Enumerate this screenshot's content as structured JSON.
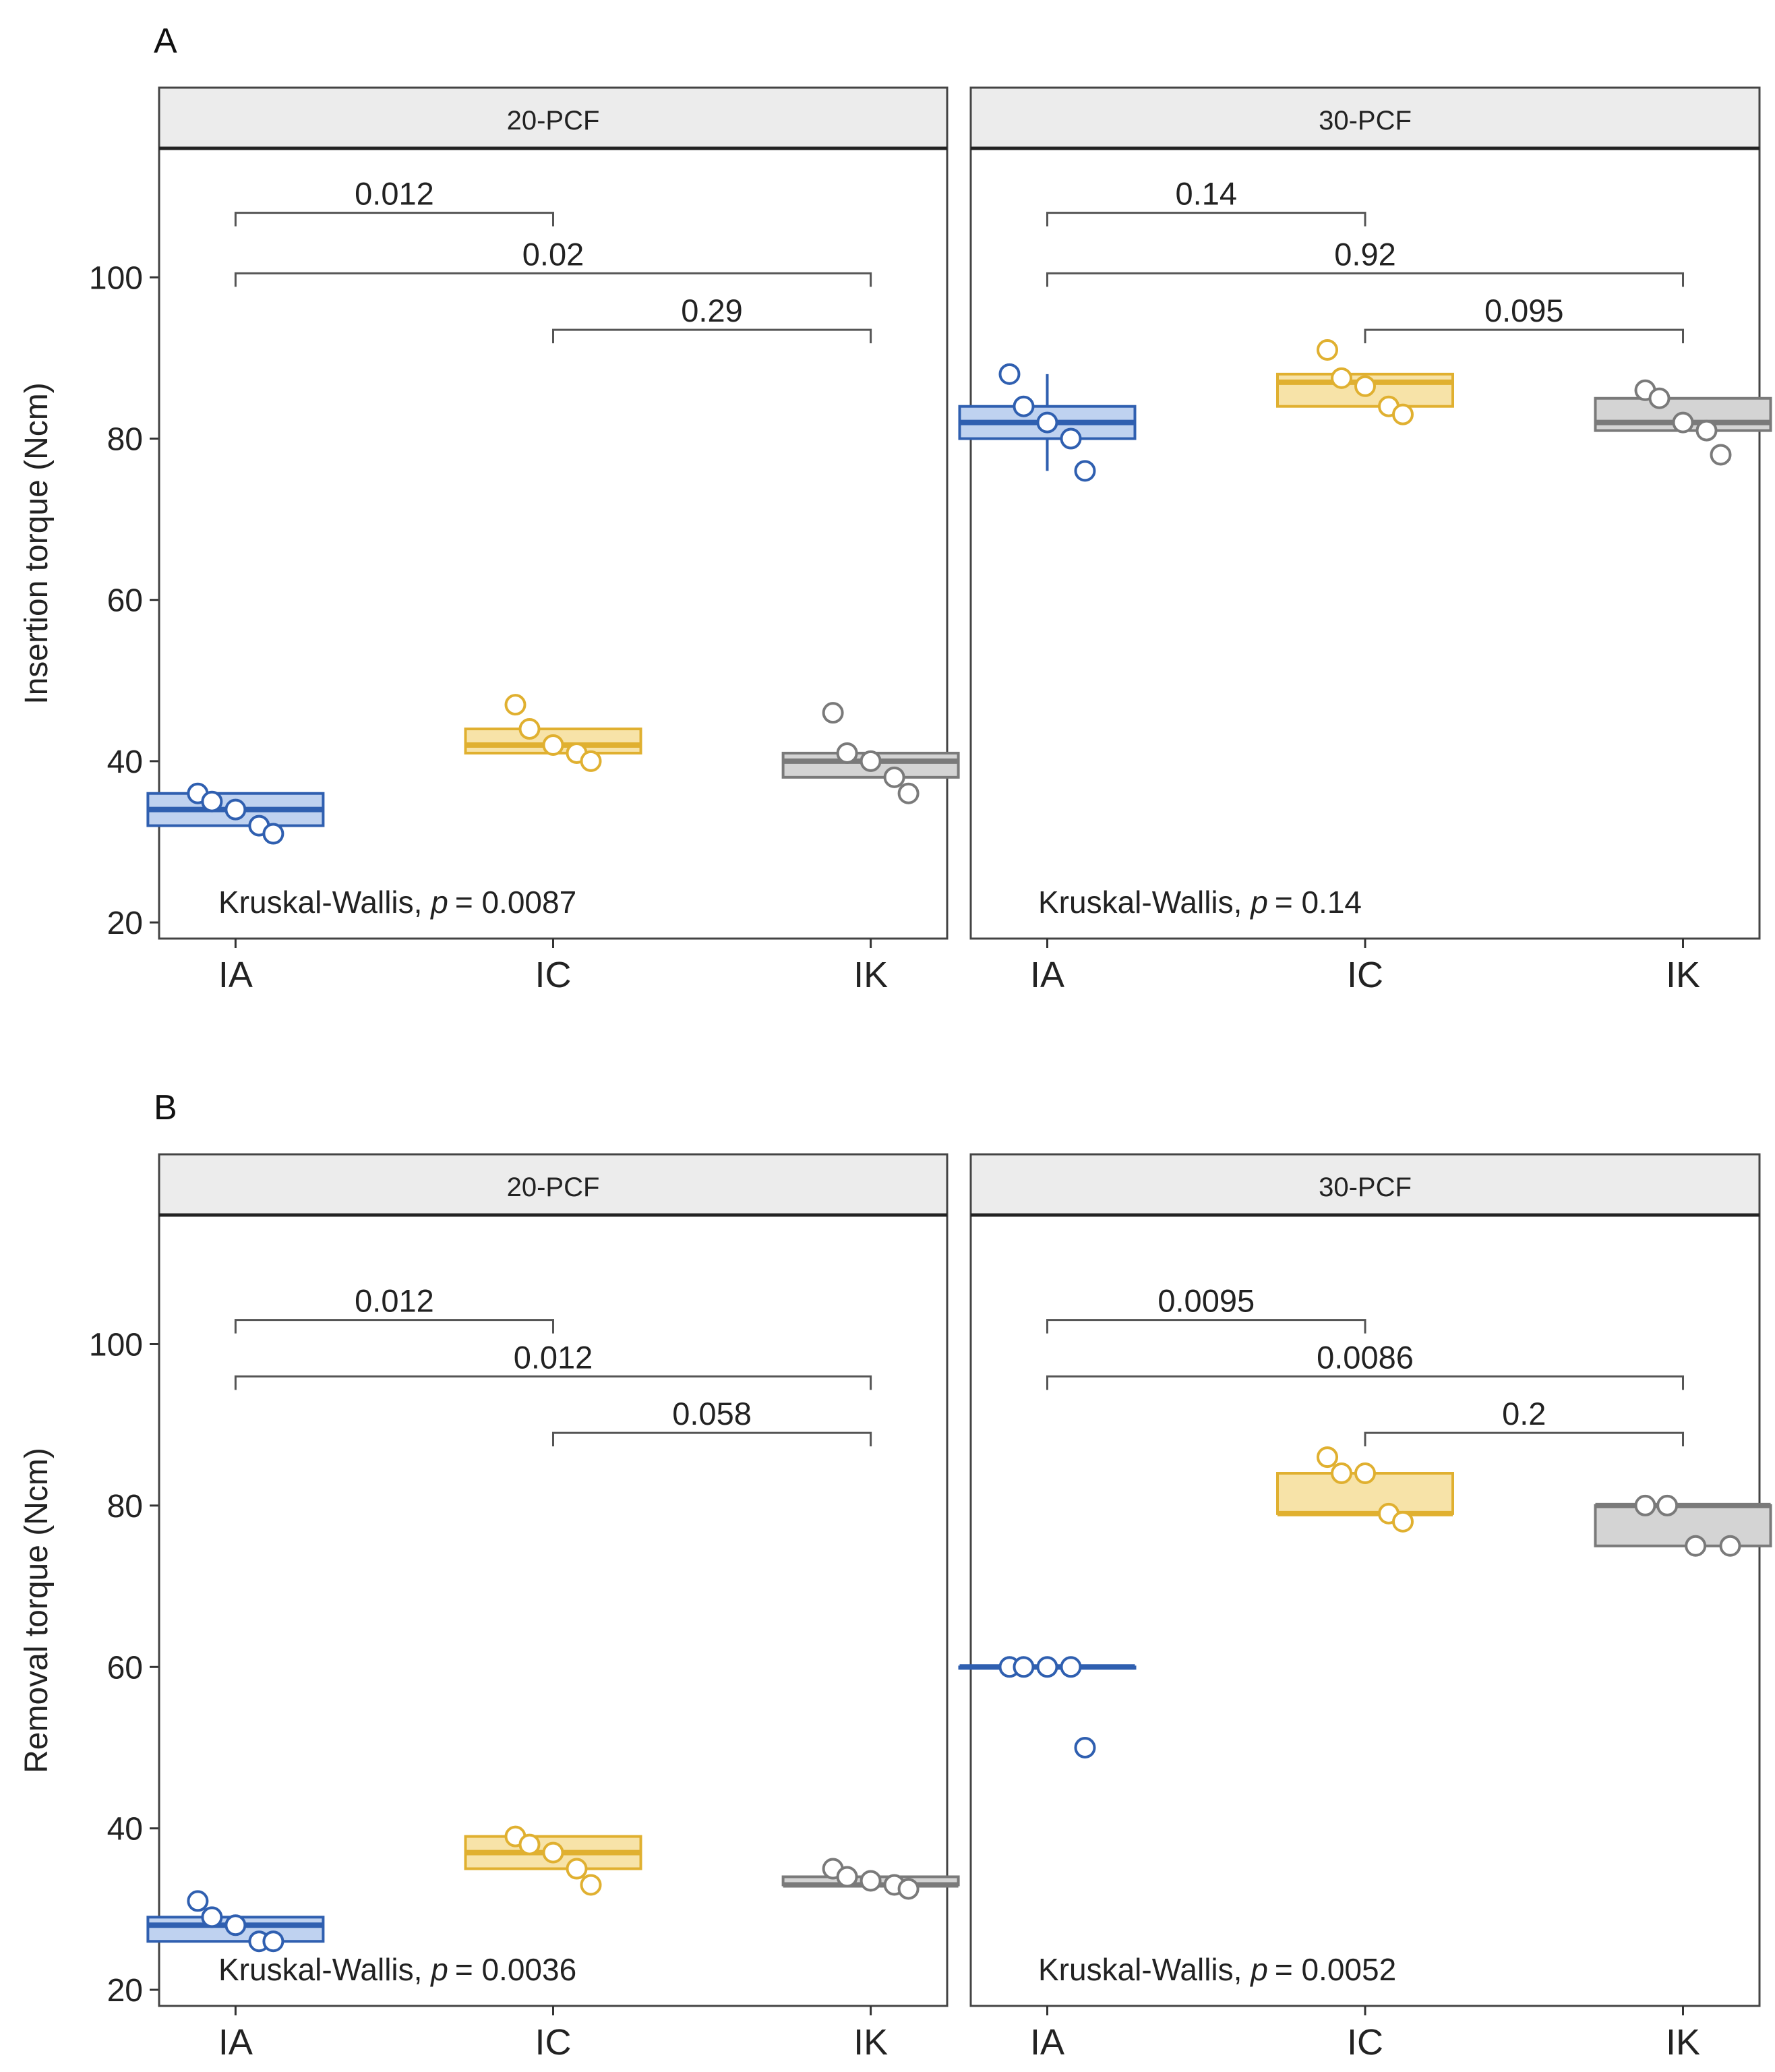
{
  "colors": {
    "IA": "#2f5fb0",
    "IC": "#e0b030",
    "IK": "#7a7a7a",
    "IA_fill": "#bfd2f0",
    "IC_fill": "#f7e3a8",
    "IK_fill": "#d4d4d4"
  },
  "chart_data": [
    {
      "type": "box",
      "panel_label": "A",
      "ylabel": "Insertion torque (Ncm)",
      "ylim": [
        18,
        116
      ],
      "yticks": [
        20,
        40,
        60,
        80,
        100
      ],
      "categories": [
        "IA",
        "IC",
        "IK"
      ],
      "facets": [
        {
          "strip": "20-PCF",
          "groups": [
            {
              "name": "IA",
              "box": {
                "q1": 32,
                "median": 34,
                "q3": 36,
                "lo": 32,
                "hi": 36
              },
              "points": [
                36,
                35,
                34,
                32,
                31
              ]
            },
            {
              "name": "IC",
              "box": {
                "q1": 41,
                "median": 42,
                "q3": 44,
                "lo": 41,
                "hi": 44
              },
              "points": [
                47,
                44,
                42,
                41,
                40
              ]
            },
            {
              "name": "IK",
              "box": {
                "q1": 38,
                "median": 40,
                "q3": 41,
                "lo": 38,
                "hi": 41
              },
              "points": [
                46,
                41,
                40,
                38,
                36
              ]
            }
          ],
          "comparisons": [
            {
              "from": "IA",
              "to": "IC",
              "p": "0.012",
              "y": 108
            },
            {
              "from": "IA",
              "to": "IK",
              "p": "0.02",
              "y": 100.5
            },
            {
              "from": "IC",
              "to": "IK",
              "p": "0.29",
              "y": 93.5
            }
          ],
          "test": {
            "prefix": "Kruskal-Wallis,",
            "p_symbol": "p",
            "p_text": "= 0.0087"
          }
        },
        {
          "strip": "30-PCF",
          "groups": [
            {
              "name": "IA",
              "box": {
                "q1": 80,
                "median": 82,
                "q3": 84,
                "lo": 76,
                "hi": 88
              },
              "points": [
                88,
                84,
                82,
                80,
                76
              ]
            },
            {
              "name": "IC",
              "box": {
                "q1": 84,
                "median": 87,
                "q3": 88,
                "lo": 84,
                "hi": 88
              },
              "points": [
                91,
                87.5,
                86.5,
                84,
                83
              ]
            },
            {
              "name": "IK",
              "box": {
                "q1": 81,
                "median": 82,
                "q3": 85,
                "lo": 81,
                "hi": 85
              },
              "points": [
                86,
                85,
                82,
                81,
                78
              ]
            }
          ],
          "comparisons": [
            {
              "from": "IA",
              "to": "IC",
              "p": "0.14",
              "y": 108
            },
            {
              "from": "IA",
              "to": "IK",
              "p": "0.92",
              "y": 100.5
            },
            {
              "from": "IC",
              "to": "IK",
              "p": "0.095",
              "y": 93.5
            }
          ],
          "test": {
            "prefix": "Kruskal-Wallis,",
            "p_symbol": "p",
            "p_text": "= 0.14"
          }
        }
      ]
    },
    {
      "type": "box",
      "panel_label": "B",
      "ylabel": "Removal torque (Ncm)",
      "ylim": [
        18,
        116
      ],
      "yticks": [
        20,
        40,
        60,
        80,
        100
      ],
      "categories": [
        "IA",
        "IC",
        "IK"
      ],
      "facets": [
        {
          "strip": "20-PCF",
          "groups": [
            {
              "name": "IA",
              "box": {
                "q1": 26,
                "median": 28,
                "q3": 29,
                "lo": 26,
                "hi": 29
              },
              "points": [
                31,
                29,
                28,
                26,
                26
              ]
            },
            {
              "name": "IC",
              "box": {
                "q1": 35,
                "median": 37,
                "q3": 39,
                "lo": 35,
                "hi": 39
              },
              "points": [
                39,
                38,
                37,
                35,
                33
              ]
            },
            {
              "name": "IK",
              "box": {
                "q1": 33,
                "median": 33,
                "q3": 34,
                "lo": 33,
                "hi": 34
              },
              "points": [
                35,
                34,
                33.5,
                33,
                32.5
              ]
            }
          ],
          "comparisons": [
            {
              "from": "IA",
              "to": "IC",
              "p": "0.012",
              "y": 103
            },
            {
              "from": "IA",
              "to": "IK",
              "p": "0.012",
              "y": 96
            },
            {
              "from": "IC",
              "to": "IK",
              "p": "0.058",
              "y": 89
            }
          ],
          "test": {
            "prefix": "Kruskal-Wallis,",
            "p_symbol": "p",
            "p_text": "= 0.0036"
          }
        },
        {
          "strip": "30-PCF",
          "groups": [
            {
              "name": "IA",
              "box": {
                "q1": 60,
                "median": 60,
                "q3": 60,
                "lo": 60,
                "hi": 60
              },
              "points": [
                60,
                60,
                60,
                60,
                50
              ]
            },
            {
              "name": "IC",
              "box": {
                "q1": 79,
                "median": 79,
                "q3": 84,
                "lo": 79,
                "hi": 84
              },
              "points": [
                86,
                84,
                84,
                79,
                78
              ]
            },
            {
              "name": "IK",
              "box": {
                "q1": 75,
                "median": 80,
                "q3": 80,
                "lo": 75,
                "hi": 80
              },
              "points": [
                80,
                80,
                75,
                75
              ]
            }
          ],
          "comparisons": [
            {
              "from": "IA",
              "to": "IC",
              "p": "0.0095",
              "y": 103
            },
            {
              "from": "IA",
              "to": "IK",
              "p": "0.0086",
              "y": 96
            },
            {
              "from": "IC",
              "to": "IK",
              "p": "0.2",
              "y": 89
            }
          ],
          "test": {
            "prefix": "Kruskal-Wallis,",
            "p_symbol": "p",
            "p_text": "= 0.0052"
          }
        }
      ]
    }
  ]
}
